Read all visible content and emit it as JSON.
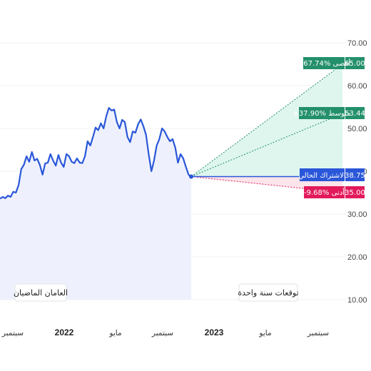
{
  "chart_data": {
    "type": "line",
    "periods": {
      "past": "العامان الماضيان",
      "forecast": "توقعات سنة واحدة"
    },
    "x_ticks": [
      "سبتمبر",
      "2022",
      "مايو",
      "سبتمبر",
      "2023",
      "مايو",
      "سبتمبر"
    ],
    "y_ticks": [
      "70.00",
      "60.00",
      "50.00",
      "40.00",
      "30.00",
      "20.00",
      "10.00"
    ],
    "ylim": [
      10,
      70
    ],
    "series": [
      {
        "values": [
          33.6,
          34.0,
          33.7,
          34.3,
          34.0,
          35.2,
          35.0,
          36.8,
          40.5,
          41.5,
          43.5,
          42.2,
          44.5,
          42.5,
          42.9,
          41.5,
          39.2,
          41.8,
          42.0,
          44.0,
          42.5,
          41.3,
          43.8,
          42.0,
          41.0,
          44.0,
          43.5,
          42.2,
          41.9,
          43.0,
          42.0,
          41.9,
          43.5,
          47.0,
          46.0,
          48.0,
          50.2,
          49.6,
          51.2,
          50.0,
          52.8,
          54.8,
          54.2,
          54.4,
          51.5,
          50.0,
          52.0,
          51.5,
          48.0,
          46.8,
          49.3,
          49.0,
          51.0,
          52.1,
          50.5,
          48.5,
          44.0,
          40.0,
          42.5,
          46.0,
          47.5,
          50.0,
          49.3,
          48.0,
          47.0,
          47.5,
          45.5,
          42.0,
          44.0,
          43.0,
          41.0,
          39.2,
          38.75
        ]
      }
    ],
    "forecast": {
      "current": {
        "label": "الاشتراك الحالي",
        "value": "38.75"
      },
      "high": {
        "label": "+67.74% أقصى",
        "value": "65.00"
      },
      "average": {
        "label": "+37.90% متوسط",
        "value": "53.44"
      },
      "low": {
        "label": "-9.68% أدنى",
        "value": "35.00"
      }
    }
  },
  "colors": {
    "line": "#2a57d9",
    "area_past": "#eef1fd",
    "area_forecast_up": "#dff6ee",
    "area_forecast_down": "#fbe4ea",
    "high_tag": "#23906b",
    "current_tag": "#2a57d9",
    "low_tag": "#e21a5c"
  }
}
